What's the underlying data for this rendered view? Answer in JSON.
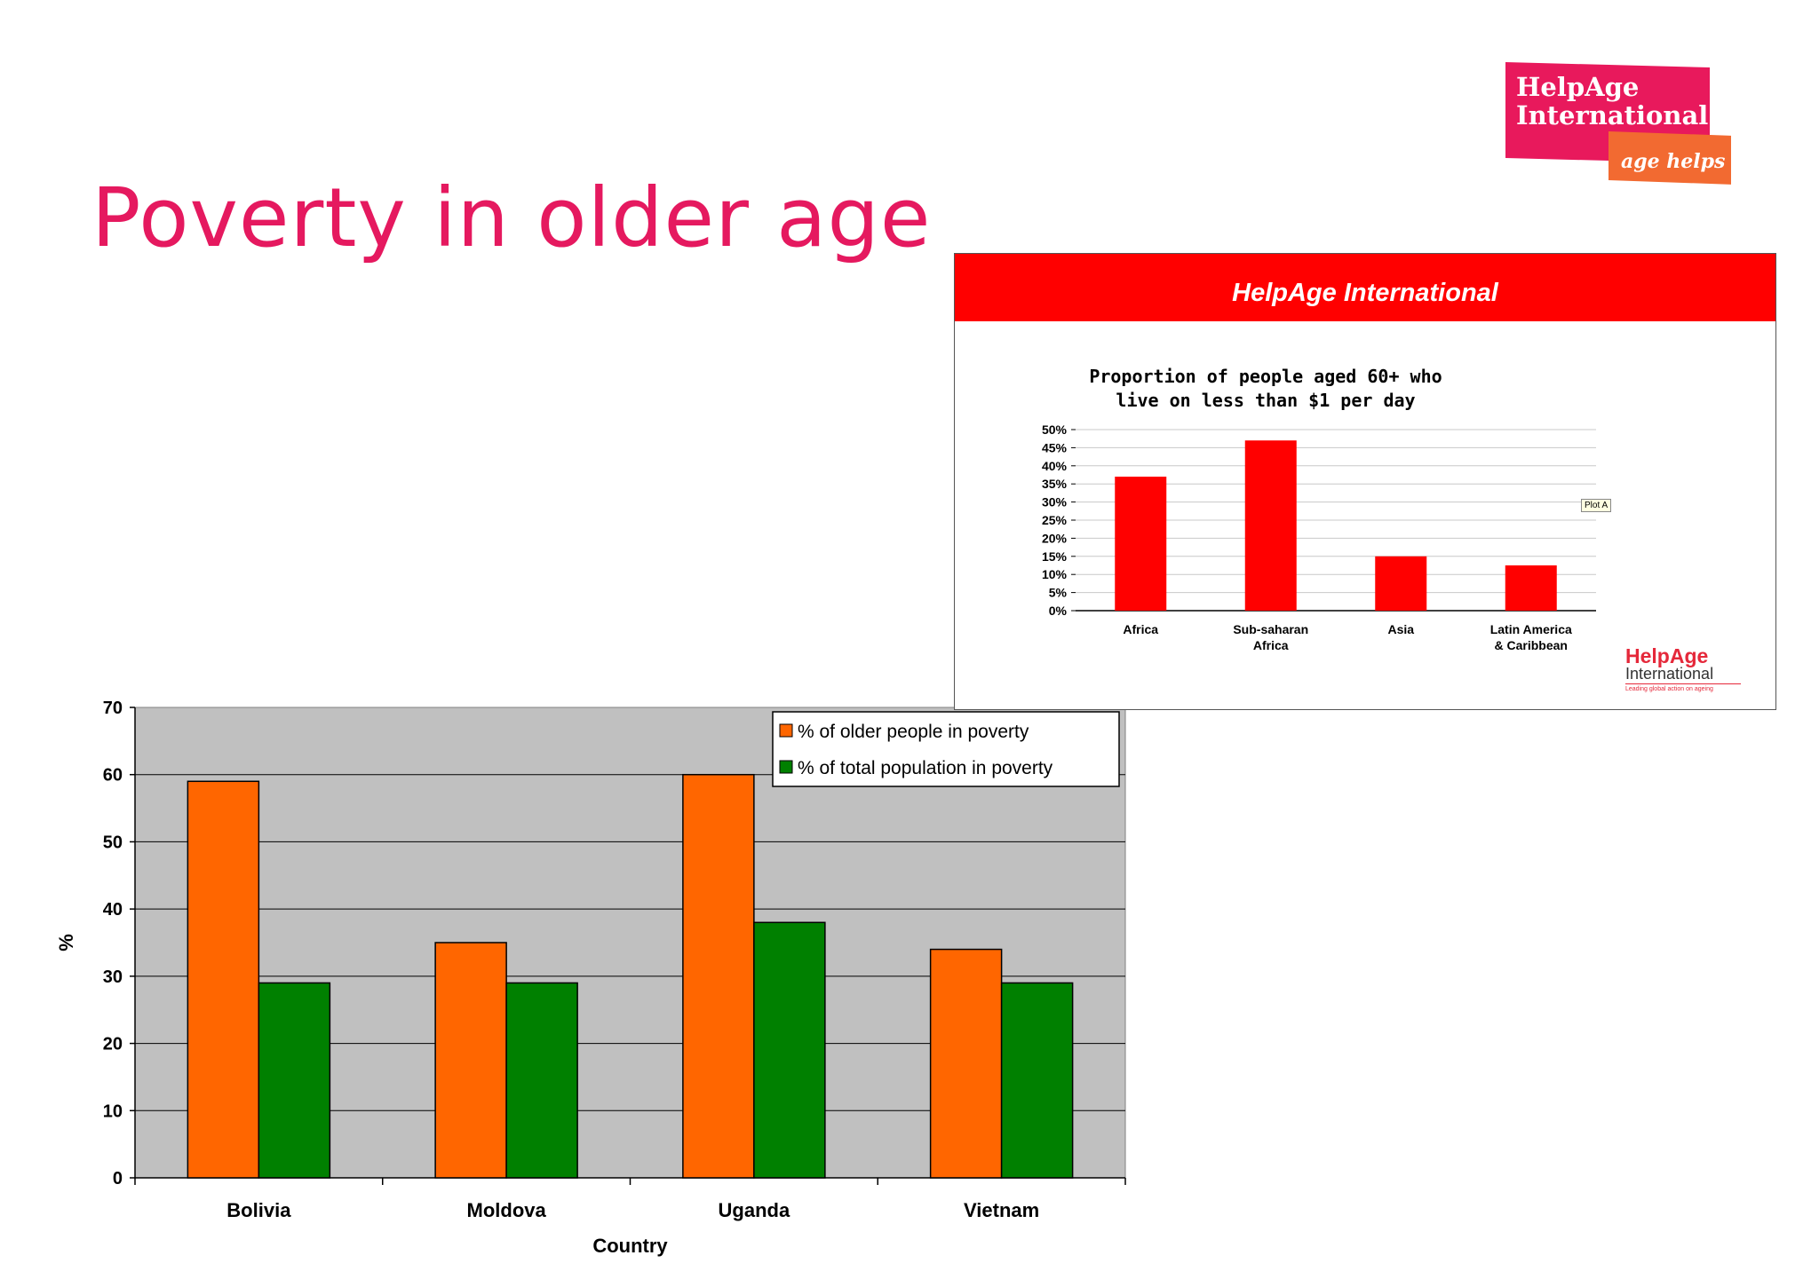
{
  "slide": {
    "title": "Poverty in older age"
  },
  "logo": {
    "line1": "HelpAge",
    "line2": "International",
    "tagline": "age helps"
  },
  "inset": {
    "header": "HelpAge International",
    "logo_name": "HelpAge",
    "logo_intl": "International",
    "logo_tag": "Leading global action on ageing",
    "tooltip": "Plot A"
  },
  "colors": {
    "brand_pink": "#e5195f",
    "inset_red": "#ff0000",
    "orange": "#ff6600",
    "green": "#008000",
    "plot_bg": "#c0c0c0"
  },
  "chart_data": [
    {
      "type": "bar",
      "title": "",
      "xlabel": "Country",
      "ylabel": "%",
      "categories": [
        "Bolivia",
        "Moldova",
        "Uganda",
        "Vietnam"
      ],
      "series": [
        {
          "name": "% of older people in poverty",
          "values": [
            59,
            35,
            60,
            34
          ]
        },
        {
          "name": "% of total population in poverty",
          "values": [
            29,
            29,
            38,
            29
          ]
        }
      ],
      "ylim": [
        0,
        70
      ],
      "yticks": [
        0,
        10,
        20,
        30,
        40,
        50,
        60,
        70
      ],
      "grid": true,
      "legend": "top-right"
    },
    {
      "type": "bar",
      "title_lines": [
        "Proportion of people aged 60+ who",
        "live on less than $1 per day"
      ],
      "xlabel": "",
      "ylabel": "",
      "categories": [
        [
          "Africa"
        ],
        [
          "Sub-saharan",
          "Africa"
        ],
        [
          "Asia"
        ],
        [
          "Latin America",
          "& Caribbean"
        ]
      ],
      "values": [
        37,
        47,
        15,
        12.5
      ],
      "ylim": [
        0,
        50
      ],
      "yticks": [
        "0%",
        "5%",
        "10%",
        "15%",
        "20%",
        "25%",
        "30%",
        "35%",
        "40%",
        "45%",
        "50%"
      ],
      "grid": true
    }
  ]
}
